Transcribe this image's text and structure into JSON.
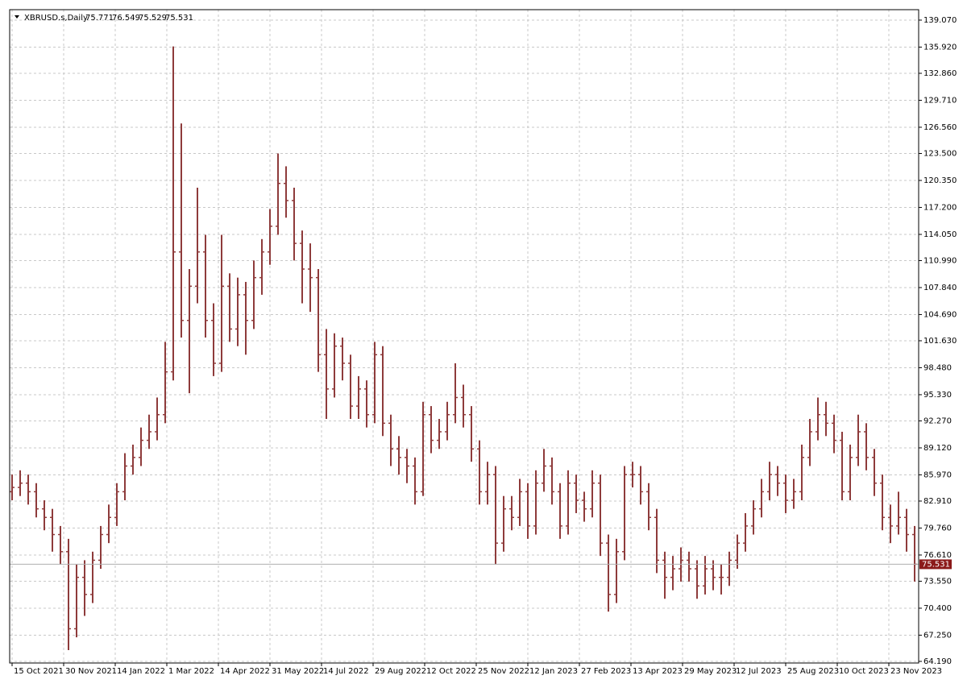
{
  "chart_data": {
    "type": "ohlc",
    "title": "XBRUSD.s,Daily",
    "header_values": [
      75.771,
      76.549,
      75.529,
      75.531
    ],
    "last_price": 75.531,
    "color": "#8e3b3b",
    "grid": true,
    "xlim": [
      -1.5,
      562.5
    ],
    "ylim": [
      64.0,
      140.29
    ],
    "xticks": [
      {
        "value": 0,
        "label": "15 Oct 2021"
      },
      {
        "value": 32,
        "label": "30 Nov 2021"
      },
      {
        "value": 64,
        "label": "14 Jan 2022"
      },
      {
        "value": 96,
        "label": "1 Mar 2022"
      },
      {
        "value": 128,
        "label": "14 Apr 2022"
      },
      {
        "value": 160,
        "label": "31 May 2022"
      },
      {
        "value": 192,
        "label": "14 Jul 2022"
      },
      {
        "value": 224,
        "label": "29 Aug 2022"
      },
      {
        "value": 256,
        "label": "12 Oct 2022"
      },
      {
        "value": 288,
        "label": "25 Nov 2022"
      },
      {
        "value": 320,
        "label": "12 Jan 2023"
      },
      {
        "value": 352,
        "label": "27 Feb 2023"
      },
      {
        "value": 384,
        "label": "13 Apr 2023"
      },
      {
        "value": 416,
        "label": "29 May 2023"
      },
      {
        "value": 448,
        "label": "12 Jul 2023"
      },
      {
        "value": 480,
        "label": "25 Aug 2023"
      },
      {
        "value": 512,
        "label": "10 Oct 2023"
      },
      {
        "value": 544,
        "label": "23 Nov 2023"
      }
    ],
    "yticks": [
      {
        "value": 139.07,
        "label": "139.070"
      },
      {
        "value": 135.92,
        "label": "135.920"
      },
      {
        "value": 132.86,
        "label": "132.860"
      },
      {
        "value": 129.71,
        "label": "129.710"
      },
      {
        "value": 126.56,
        "label": "126.560"
      },
      {
        "value": 123.5,
        "label": "123.500"
      },
      {
        "value": 120.35,
        "label": "120.350"
      },
      {
        "value": 117.2,
        "label": "117.200"
      },
      {
        "value": 114.05,
        "label": "114.050"
      },
      {
        "value": 110.99,
        "label": "110.990"
      },
      {
        "value": 107.84,
        "label": "107.840"
      },
      {
        "value": 104.69,
        "label": "104.690"
      },
      {
        "value": 101.63,
        "label": "101.630"
      },
      {
        "value": 98.48,
        "label": "98.480"
      },
      {
        "value": 95.33,
        "label": "95.330"
      },
      {
        "value": 92.27,
        "label": "92.270"
      },
      {
        "value": 89.12,
        "label": "89.120"
      },
      {
        "value": 85.97,
        "label": "85.970"
      },
      {
        "value": 82.91,
        "label": "82.910"
      },
      {
        "value": 79.76,
        "label": "79.760"
      },
      {
        "value": 76.61,
        "label": "76.610"
      },
      {
        "value": 73.55,
        "label": "73.550"
      },
      {
        "value": 70.4,
        "label": "70.400"
      },
      {
        "value": 67.25,
        "label": "67.250"
      },
      {
        "value": 64.19,
        "label": "64.190"
      }
    ],
    "x": [
      0,
      5,
      10,
      15,
      20,
      25,
      30,
      35,
      40,
      45,
      50,
      55,
      60,
      65,
      70,
      75,
      80,
      85,
      90,
      95,
      100,
      105,
      110,
      115,
      120,
      125,
      130,
      135,
      140,
      145,
      150,
      155,
      160,
      165,
      170,
      175,
      180,
      185,
      190,
      195,
      200,
      205,
      210,
      215,
      220,
      225,
      230,
      235,
      240,
      245,
      250,
      255,
      260,
      265,
      270,
      275,
      280,
      285,
      290,
      295,
      300,
      305,
      310,
      315,
      320,
      325,
      330,
      335,
      340,
      345,
      350,
      355,
      360,
      365,
      370,
      375,
      380,
      385,
      390,
      395,
      400,
      405,
      410,
      415,
      420,
      425,
      430,
      435,
      440,
      445,
      450,
      455,
      460,
      465,
      470,
      475,
      480,
      485,
      490,
      495,
      500,
      505,
      510,
      515,
      520,
      525,
      530,
      535,
      540,
      545,
      550,
      555,
      560
    ],
    "open": [
      84,
      84.5,
      85,
      84,
      82,
      81,
      79,
      77,
      68,
      74,
      72,
      76,
      79,
      81,
      84,
      87,
      88,
      90,
      91,
      93,
      98,
      112,
      104,
      108,
      112,
      104,
      99,
      108,
      103,
      107,
      104,
      109,
      112,
      115,
      120,
      118,
      113,
      110,
      109,
      100,
      96,
      101,
      99,
      94,
      96,
      93,
      100,
      92,
      89,
      88,
      87,
      84,
      93,
      90,
      91,
      93,
      95,
      93,
      89,
      84,
      86,
      78,
      82,
      81,
      84,
      80,
      85,
      87,
      84,
      80,
      85,
      83,
      82,
      85,
      78,
      72,
      77,
      86,
      86,
      84,
      81,
      76,
      74,
      75,
      76,
      75,
      73,
      75,
      74,
      74,
      76,
      78,
      80,
      82,
      84,
      86,
      85,
      83,
      84,
      88,
      91,
      93,
      92,
      90,
      84,
      88,
      91,
      88,
      85,
      81,
      80,
      81,
      79
    ],
    "high": [
      86,
      86.5,
      86,
      85,
      83,
      82,
      80,
      78.5,
      75.5,
      76,
      77,
      80,
      82.5,
      85,
      88.5,
      89.5,
      91.5,
      93,
      95,
      101.5,
      136,
      127,
      110,
      119.5,
      114,
      106,
      114,
      109.5,
      109,
      108.5,
      111,
      113.5,
      117,
      123.5,
      122,
      119.5,
      114.5,
      113,
      110,
      103,
      102.5,
      102,
      100,
      97.5,
      97,
      101.5,
      101,
      93,
      90.5,
      89,
      88,
      94.5,
      94,
      92.5,
      94.5,
      99,
      96.5,
      94,
      90,
      87.5,
      87,
      83.5,
      83.5,
      85.5,
      85,
      86.5,
      89,
      88,
      85,
      86.5,
      86,
      84,
      86.5,
      86,
      79,
      78.5,
      87,
      87.5,
      87,
      85,
      82,
      77,
      76.5,
      77.5,
      77,
      76,
      76.5,
      76,
      75.5,
      77,
      79,
      81.5,
      83,
      85.5,
      87.5,
      87,
      86,
      85.5,
      89.5,
      92.5,
      95,
      94.5,
      93,
      91,
      89.5,
      93,
      92,
      89,
      86,
      82.5,
      84,
      82,
      80
    ],
    "low": [
      83,
      83.5,
      82.5,
      81,
      79.5,
      77,
      75.5,
      65.5,
      67,
      69.5,
      71,
      75,
      78,
      80,
      83,
      86,
      87,
      89,
      90,
      92,
      97,
      102,
      95.5,
      106,
      102,
      97.5,
      98,
      101.5,
      101,
      100,
      103,
      107,
      110.5,
      114,
      116,
      111,
      106,
      105,
      98,
      92.5,
      95,
      97,
      92.5,
      92.5,
      91.5,
      92,
      90.5,
      87,
      86,
      85,
      82.5,
      83.5,
      88.5,
      89,
      90,
      92,
      91.5,
      87.5,
      82.5,
      82.5,
      75.5,
      77,
      79.5,
      80,
      78.5,
      79,
      84,
      82.5,
      78.5,
      79,
      81.5,
      80.5,
      81,
      76.5,
      70,
      71,
      76,
      84.5,
      82.5,
      79.5,
      74.5,
      71.5,
      72.5,
      73.5,
      73.5,
      71.5,
      72,
      72.5,
      72,
      73,
      75,
      77,
      79,
      81,
      83,
      83.5,
      81.5,
      82,
      83,
      87,
      90,
      90.5,
      88.5,
      83,
      83,
      87,
      86.5,
      83.5,
      79.5,
      78,
      79,
      77,
      73.5
    ],
    "close": [
      84.5,
      85,
      84,
      82,
      81,
      79,
      77,
      68,
      74,
      72,
      76,
      79,
      81,
      84,
      87,
      88,
      90,
      91,
      93,
      98,
      112,
      104,
      108,
      112,
      104,
      99,
      108,
      103,
      107,
      104,
      109,
      112,
      115,
      120,
      118,
      113,
      110,
      109,
      100,
      96,
      101,
      99,
      94,
      96,
      93,
      100,
      92,
      89,
      88,
      87,
      84,
      93,
      90,
      91,
      93,
      95,
      93,
      89,
      84,
      86,
      78,
      82,
      81,
      84,
      80,
      85,
      87,
      84,
      80,
      85,
      83,
      82,
      85,
      78,
      72,
      77,
      86,
      86,
      84,
      81,
      76,
      74,
      75,
      76,
      75,
      73,
      75,
      74,
      74,
      76,
      78,
      80,
      82,
      84,
      86,
      85,
      83,
      84,
      88,
      91,
      93,
      92,
      90,
      84,
      88,
      91,
      88,
      85,
      81,
      80,
      81,
      79,
      75.531
    ]
  }
}
